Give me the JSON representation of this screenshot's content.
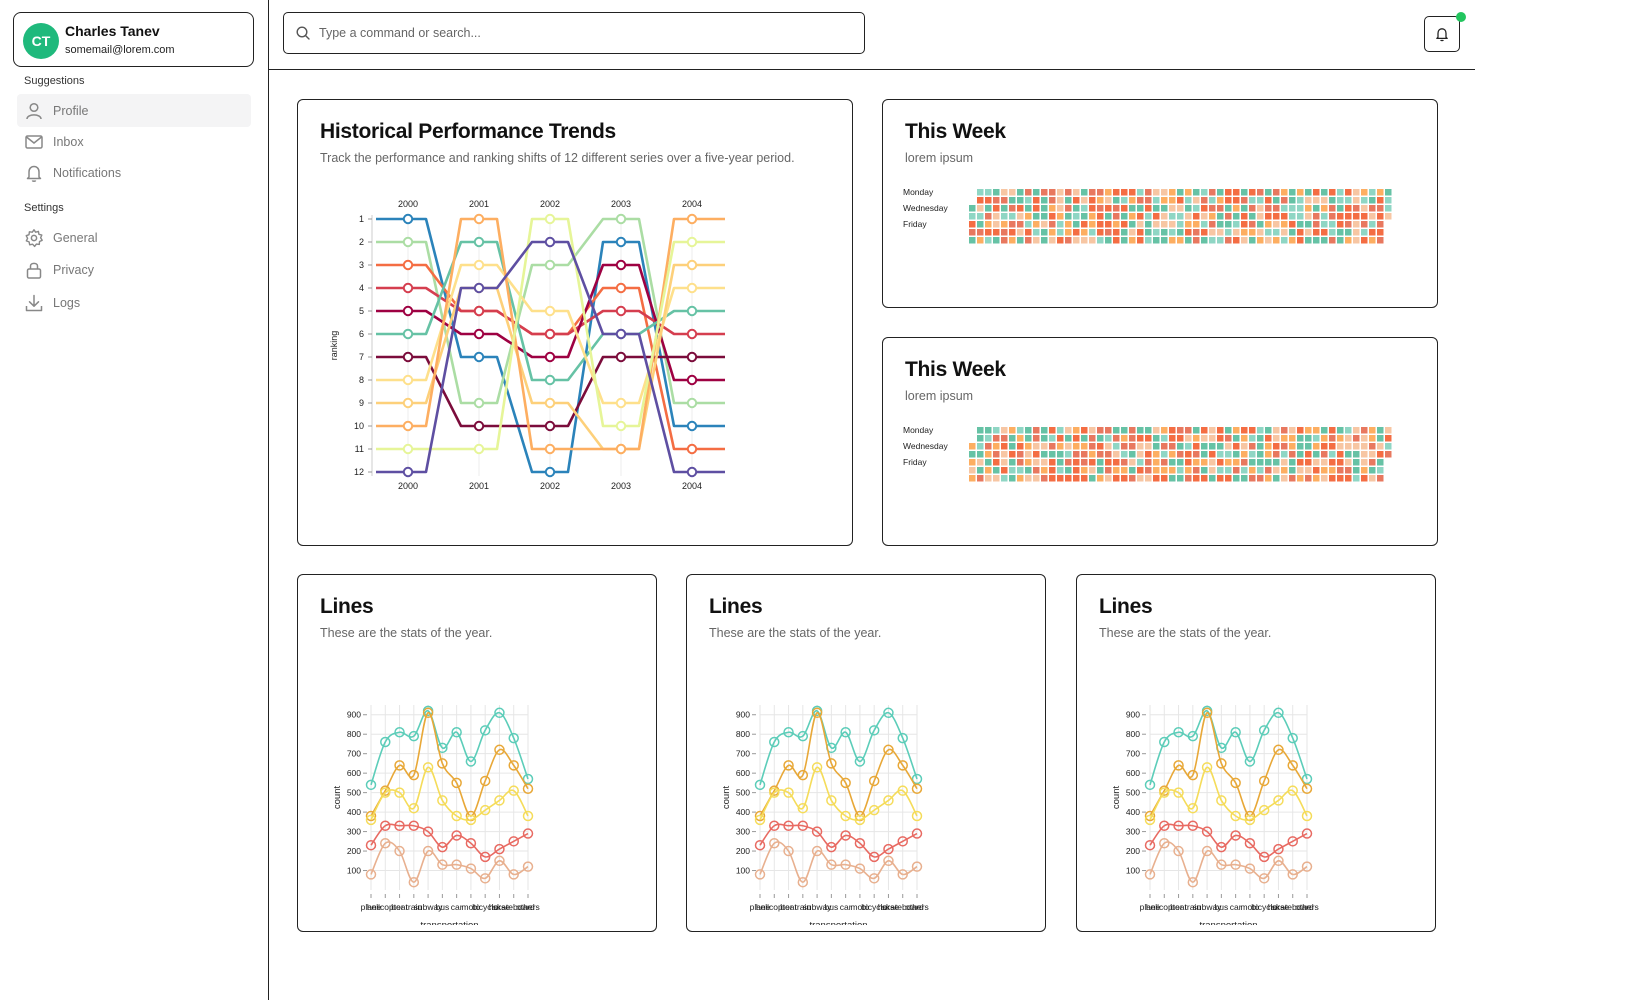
{
  "user": {
    "initials": "CT",
    "name": "Charles Tanev",
    "email": "somemail@lorem.com"
  },
  "sidebar": {
    "suggestions_label": "Suggestions",
    "settings_label": "Settings",
    "items": [
      {
        "label": "Profile",
        "icon": "user-icon"
      },
      {
        "label": "Inbox",
        "icon": "mail-icon"
      },
      {
        "label": "Notifications",
        "icon": "bell-icon"
      },
      {
        "label": "General",
        "icon": "gear-icon"
      },
      {
        "label": "Privacy",
        "icon": "lock-icon"
      },
      {
        "label": "Logs",
        "icon": "download-icon"
      }
    ]
  },
  "search": {
    "placeholder": "Type a command or search..."
  },
  "colors": {
    "accent": "#1fb97c",
    "notification_dot": "#22c55e"
  },
  "bump_card": {
    "title": "Historical Performance Trends",
    "subtitle": "Track the performance and ranking shifts of 12 different series over a five-year period."
  },
  "week_cards": [
    {
      "title": "This Week",
      "subtitle": "lorem ipsum",
      "days": [
        "Monday",
        "Wednesday",
        "Friday"
      ]
    },
    {
      "title": "This Week",
      "subtitle": "lorem ipsum",
      "days": [
        "Monday",
        "Wednesday",
        "Friday"
      ]
    }
  ],
  "line_cards": [
    {
      "title": "Lines",
      "subtitle": "These are the stats of the year."
    },
    {
      "title": "Lines",
      "subtitle": "These are the stats of the year."
    },
    {
      "title": "Lines",
      "subtitle": "These are the stats of the year."
    }
  ],
  "chart_data": [
    {
      "type": "line",
      "subtype": "bump",
      "ylabel": "ranking",
      "x": [
        "2000",
        "2001",
        "2002",
        "2003",
        "2004"
      ],
      "ylim": [
        1,
        12
      ],
      "y_reversed": true,
      "y_ticks": [
        1,
        2,
        3,
        4,
        5,
        6,
        7,
        8,
        9,
        10,
        11,
        12
      ],
      "series": [
        {
          "color": "#2b83ba",
          "values": [
            1,
            7,
            12,
            2,
            10
          ]
        },
        {
          "color": "#abdda4",
          "values": [
            2,
            9,
            3,
            1,
            9
          ]
        },
        {
          "color": "#f46d43",
          "values": [
            3,
            5,
            6,
            4,
            11
          ]
        },
        {
          "color": "#d53e4f",
          "values": [
            4,
            5,
            6,
            5,
            6
          ]
        },
        {
          "color": "#9e0142",
          "values": [
            5,
            6,
            7,
            3,
            8
          ]
        },
        {
          "color": "#66c2a5",
          "values": [
            6,
            2,
            8,
            6,
            5
          ]
        },
        {
          "color": "#7b0c3b",
          "values": [
            7,
            10,
            10,
            7,
            7
          ]
        },
        {
          "color": "#fee08b",
          "values": [
            8,
            3,
            5,
            9,
            4
          ]
        },
        {
          "color": "#fdd07a",
          "values": [
            9,
            4,
            9,
            11,
            3
          ]
        },
        {
          "color": "#fdae61",
          "values": [
            10,
            1,
            11,
            11,
            1
          ]
        },
        {
          "color": "#e6f598",
          "values": [
            11,
            11,
            1,
            10,
            2
          ]
        },
        {
          "color": "#5e4fa2",
          "values": [
            12,
            4,
            2,
            6,
            12
          ]
        }
      ]
    },
    {
      "type": "heatmap",
      "rows": [
        "Monday",
        "",
        "Wednesday",
        "",
        "Friday",
        "",
        ""
      ],
      "columns": 53,
      "palette": [
        "#f46d43",
        "#e8785f",
        "#66c2a5",
        "#8fd6c4",
        "#fdae61",
        "#f7c6a3"
      ]
    },
    {
      "type": "heatmap",
      "rows": [
        "Monday",
        "",
        "Wednesday",
        "",
        "Friday",
        "",
        ""
      ],
      "columns": 53,
      "palette": [
        "#f46d43",
        "#e8785f",
        "#66c2a5",
        "#8fd6c4",
        "#fdae61",
        "#f7c6a3"
      ]
    },
    {
      "type": "line",
      "xlabel": "transportation",
      "ylabel": "count",
      "ylim": [
        0,
        950
      ],
      "y_ticks": [
        100,
        200,
        300,
        400,
        500,
        600,
        700,
        800,
        900
      ],
      "categories": [
        "plane",
        "helicopter",
        "boat",
        "train",
        "subway",
        "bus",
        "car",
        "moto",
        "bicycle",
        "horse",
        "skateboard",
        "others"
      ],
      "series": [
        {
          "color": "#5ccdb9",
          "values": [
            540,
            760,
            810,
            790,
            920,
            730,
            810,
            660,
            820,
            910,
            780,
            570
          ]
        },
        {
          "color": "#e8a838",
          "values": [
            380,
            510,
            640,
            590,
            910,
            650,
            550,
            380,
            560,
            720,
            640,
            520
          ]
        },
        {
          "color": "#f5dc5a",
          "values": [
            360,
            500,
            500,
            420,
            630,
            460,
            380,
            360,
            410,
            460,
            510,
            380
          ]
        },
        {
          "color": "#e86a62",
          "values": [
            230,
            330,
            330,
            330,
            300,
            220,
            280,
            240,
            170,
            210,
            250,
            290
          ]
        },
        {
          "color": "#e8b08f",
          "values": [
            80,
            240,
            200,
            40,
            200,
            130,
            130,
            110,
            60,
            150,
            80,
            120
          ]
        }
      ]
    }
  ]
}
